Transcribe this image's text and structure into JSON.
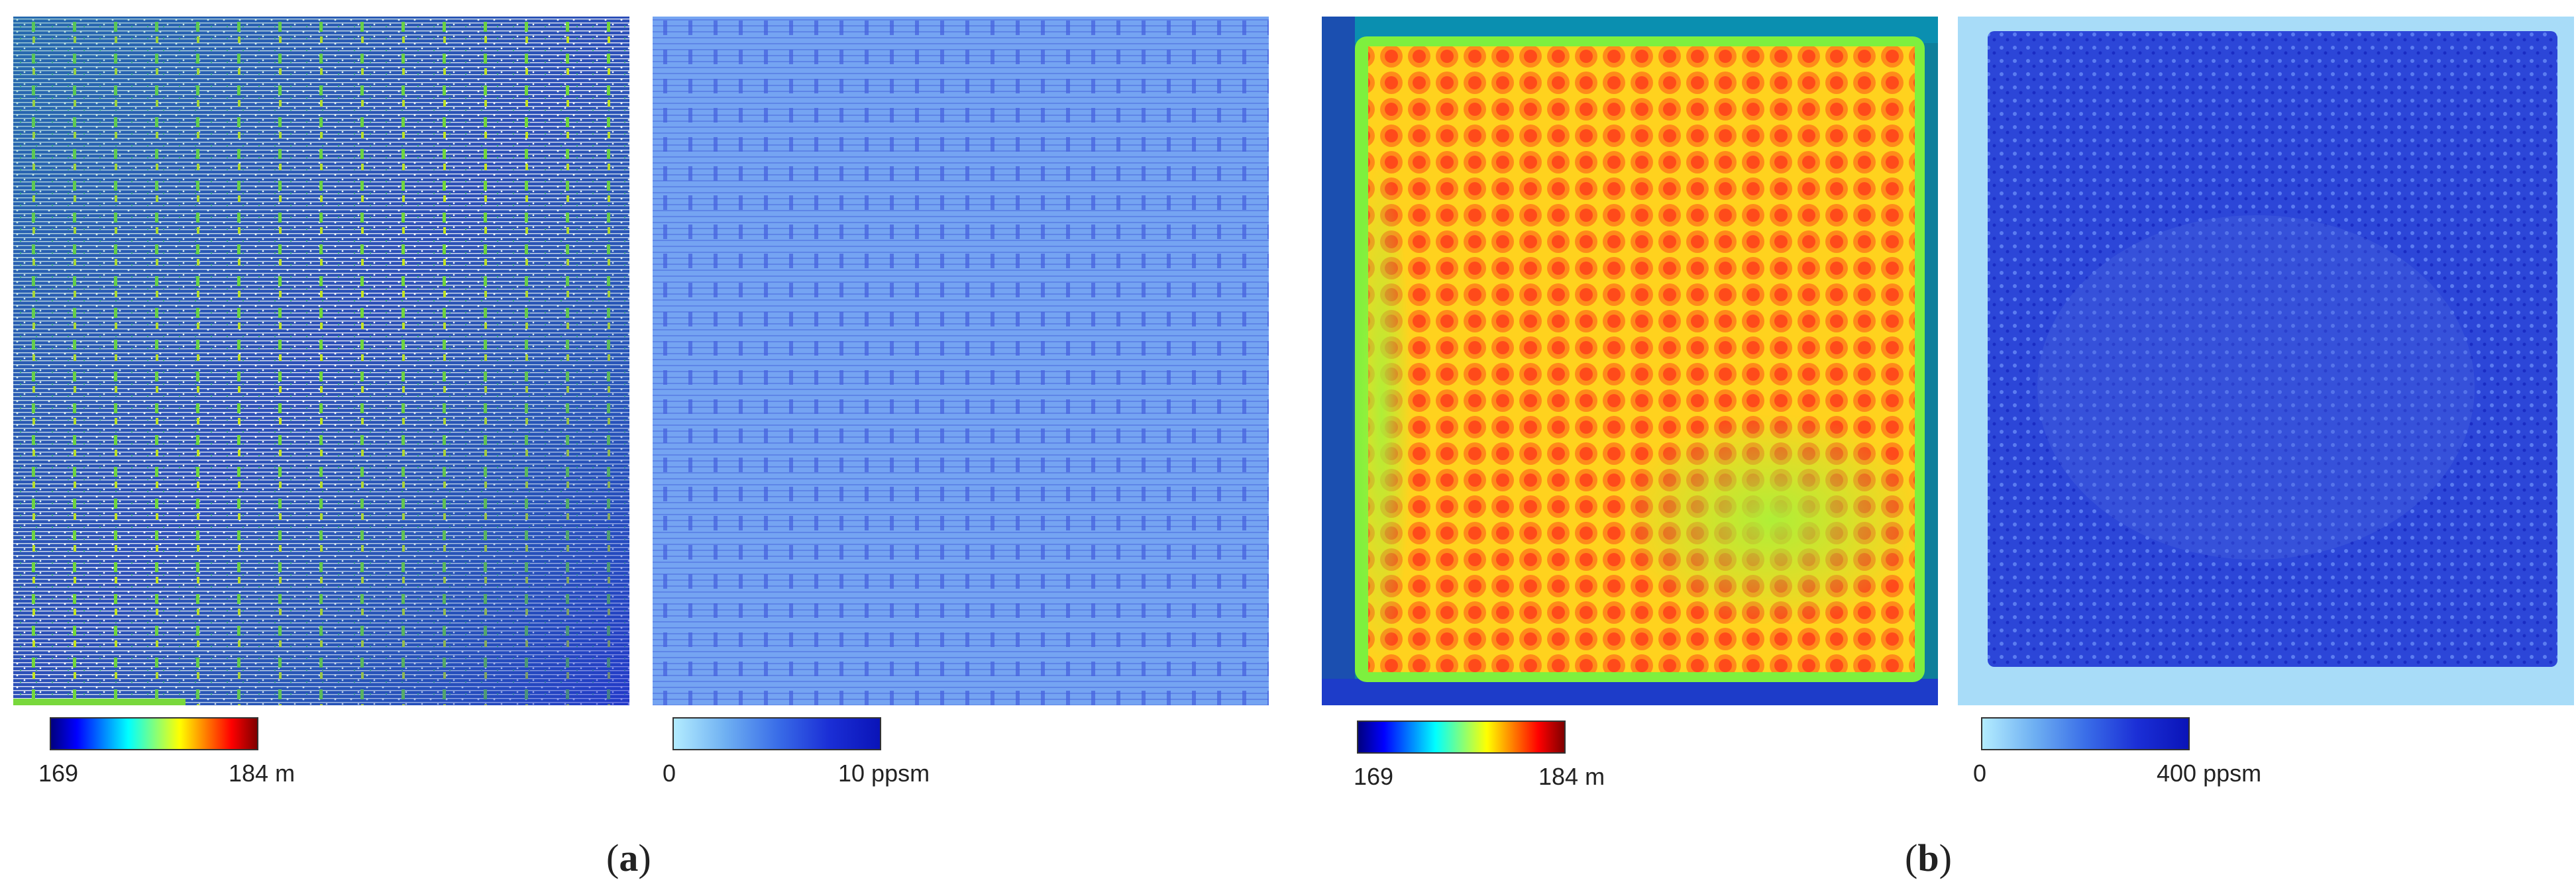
{
  "panels": [
    {
      "id": "a-elevation",
      "legend": {
        "min": "169",
        "max": "184 m",
        "colormap": "jet"
      }
    },
    {
      "id": "a-density",
      "legend": {
        "min": "0",
        "max": "10 ppsm",
        "colormap": "blues"
      }
    },
    {
      "id": "b-elevation",
      "legend": {
        "min": "169",
        "max": "184 m",
        "colormap": "jet"
      }
    },
    {
      "id": "b-density",
      "legend": {
        "min": "0",
        "max": "400 ppsm",
        "colormap": "blues"
      }
    }
  ],
  "captions": [
    {
      "open": "(",
      "letter": "a",
      "close": ")"
    },
    {
      "open": "(",
      "letter": "b",
      "close": ")"
    }
  ],
  "colors": {
    "jet_low": "#00007f",
    "jet_high": "#7f0000",
    "blue_low": "#b3ecff",
    "blue_high": "#0a14b8",
    "field_orange": "#ff5a1a",
    "border_teal": "#0f6f8f"
  }
}
